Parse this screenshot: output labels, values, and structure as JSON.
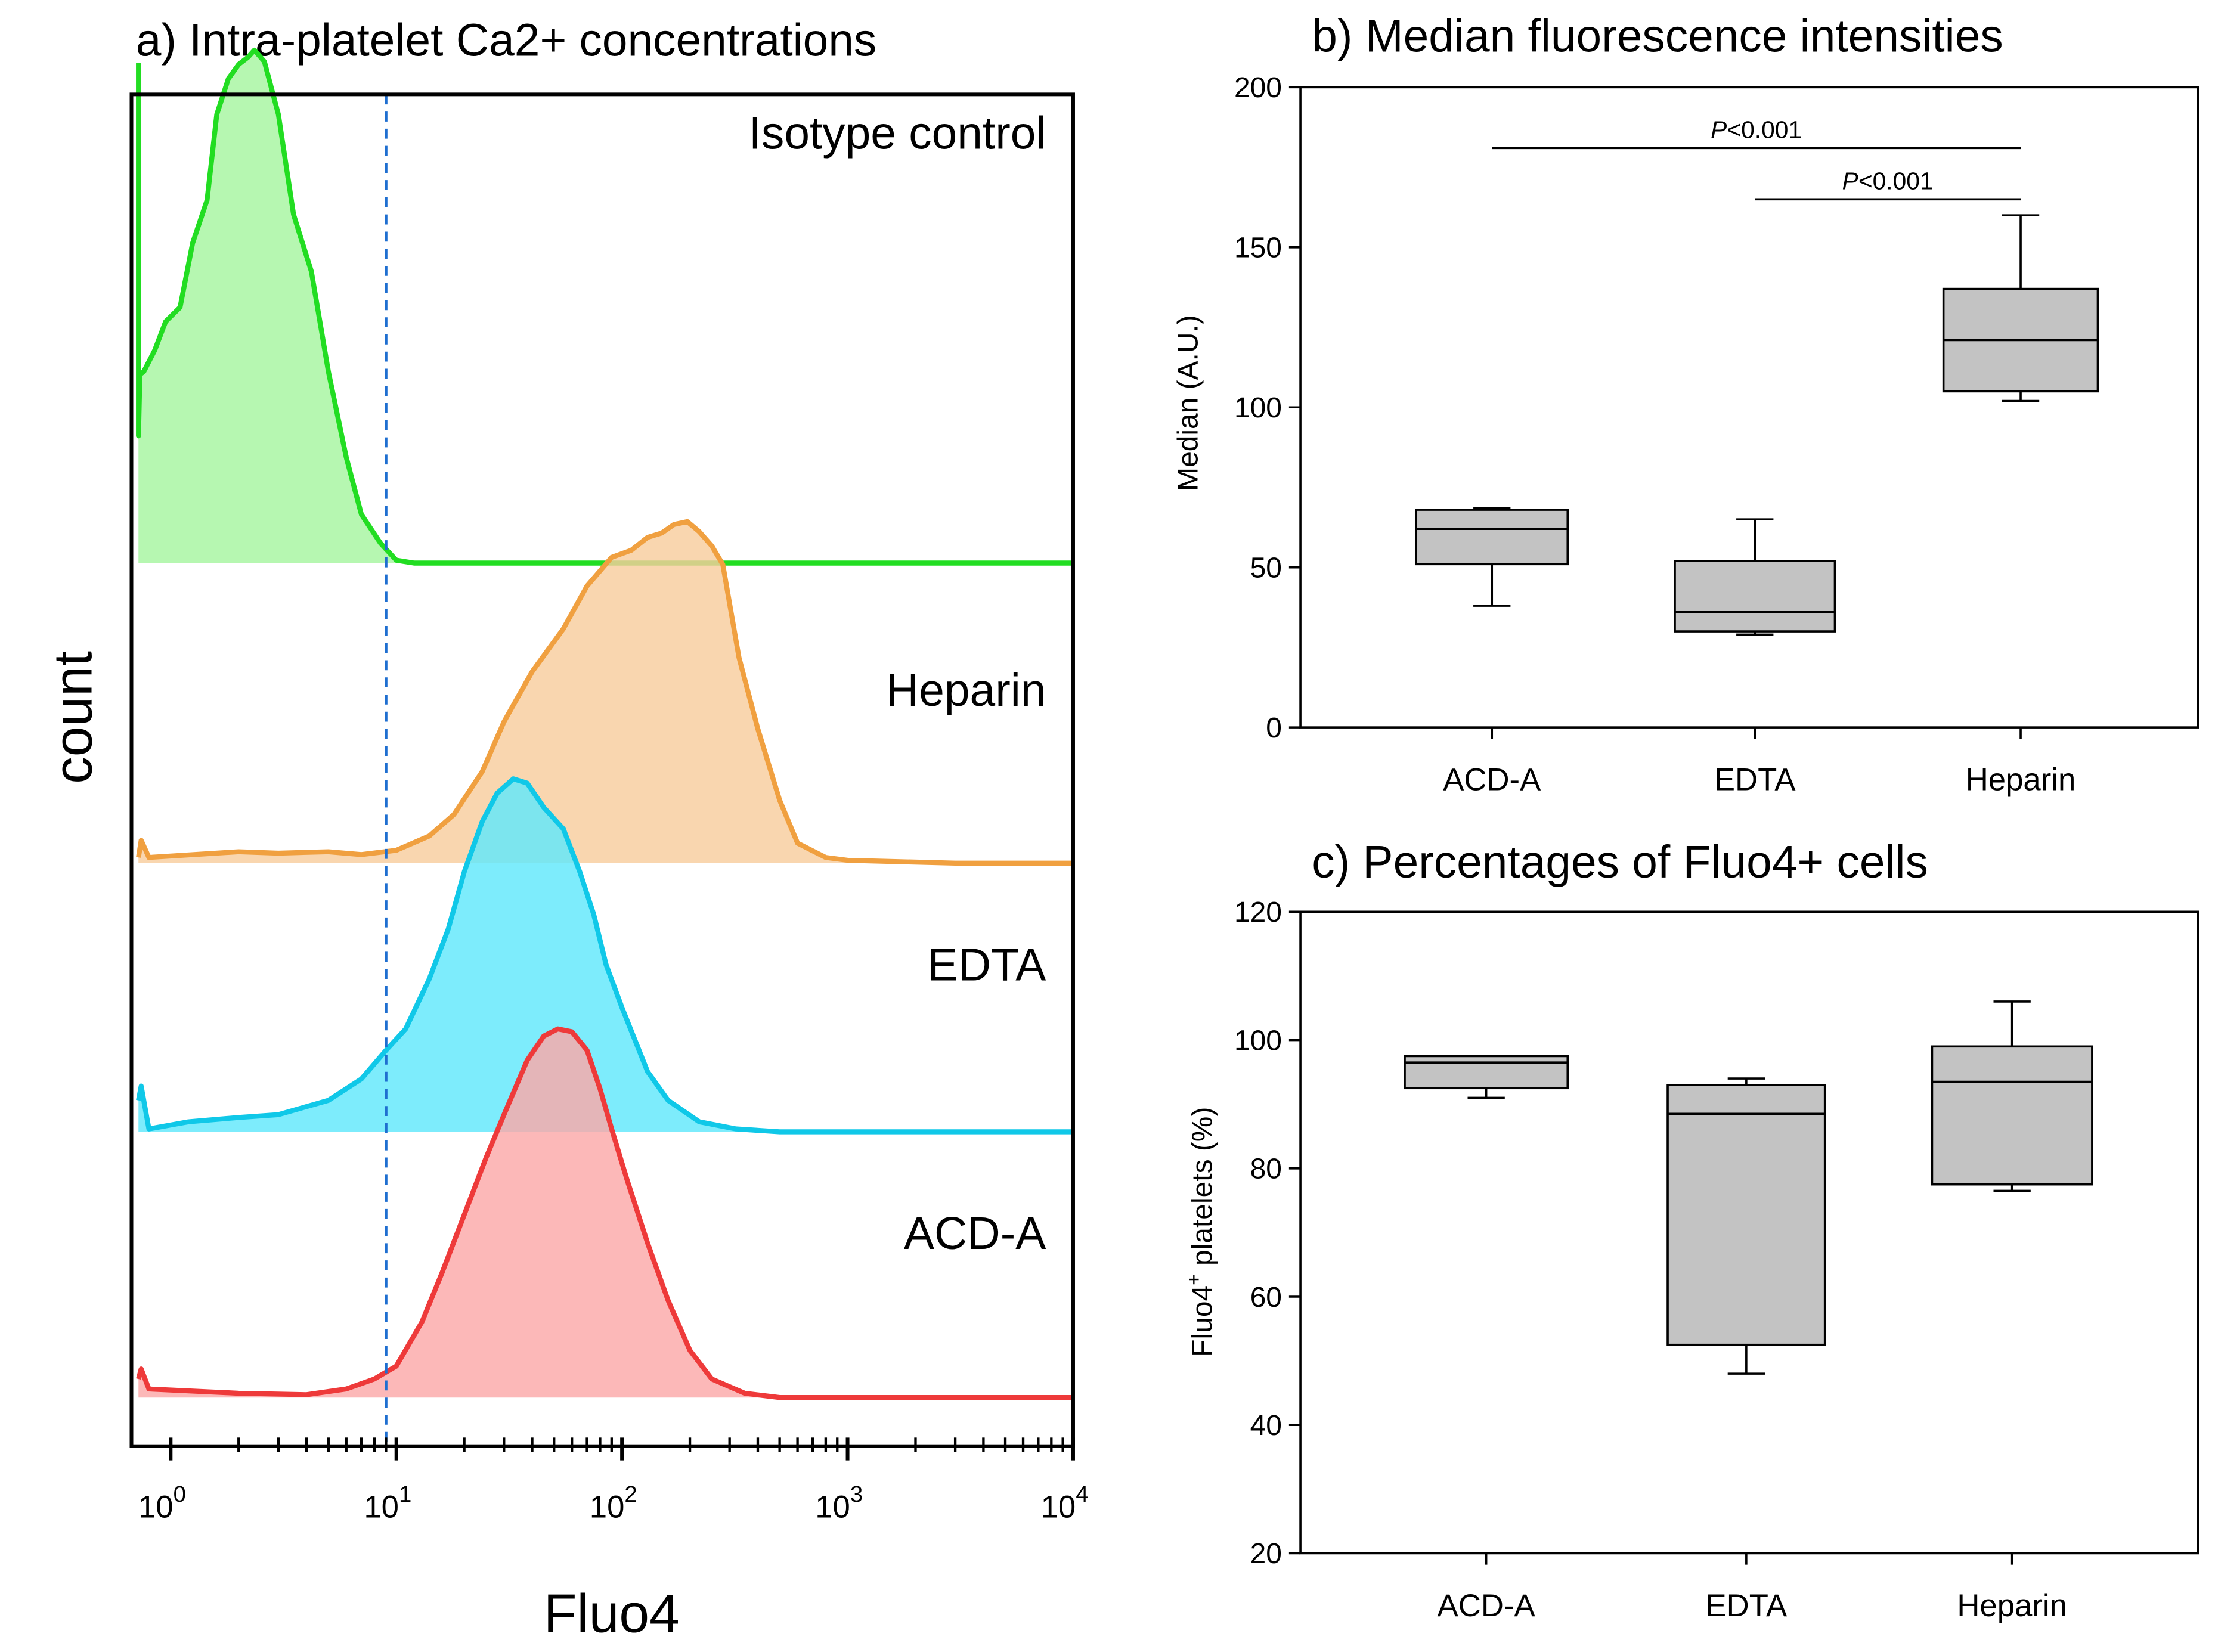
{
  "figure": {
    "panel_a": {
      "title": "a) Intra-platelet Ca2+ concentrations",
      "ylabel": "count",
      "xlabel": "Fluo4",
      "x_ticks": [
        {
          "base": "10",
          "exp": "0",
          "value": 1
        },
        {
          "base": "10",
          "exp": "1",
          "value": 10
        },
        {
          "base": "10",
          "exp": "2",
          "value": 100
        },
        {
          "base": "10",
          "exp": "3",
          "value": 1000
        },
        {
          "base": "10",
          "exp": "4",
          "value": 10000
        }
      ],
      "threshold_label": "Fluo4 threshold (dashed line)"
    },
    "panel_b": {
      "title": "b) Median fluorescence intensities",
      "ylabel": "Median (A.U.)",
      "sig1": "P<0.001",
      "sig2": "P<0.001"
    },
    "panel_c": {
      "title": "c) Percentages of Fluo4+ cells",
      "ylabel_main": "Fluo4",
      "ylabel_sup": "+",
      "ylabel_rest": " platelets (%)"
    }
  },
  "chart_data": [
    {
      "type": "histogram-overlay",
      "title": "a) Intra-platelet Ca2+ concentrations",
      "xlabel": "Fluo4",
      "ylabel": "count",
      "x_scale": "log",
      "xlim": [
        0.7,
        10000
      ],
      "threshold_x": 9,
      "series": [
        {
          "name": "Isotype control",
          "color": "#22dd22",
          "fill": "#a6f5a0",
          "points": [
            [
              0.72,
              44
            ],
            [
              0.72,
              305
            ],
            [
              0.73,
              262
            ],
            [
              0.76,
              260
            ],
            [
              0.85,
              245
            ],
            [
              0.95,
              225
            ],
            [
              1.1,
              215
            ],
            [
              1.25,
              170
            ],
            [
              1.45,
              140
            ],
            [
              1.6,
              80
            ],
            [
              1.8,
              55
            ],
            [
              2.0,
              45
            ],
            [
              2.2,
              40
            ],
            [
              2.35,
              35
            ],
            [
              2.6,
              43
            ],
            [
              3.0,
              80
            ],
            [
              3.5,
              150
            ],
            [
              4.2,
              190
            ],
            [
              5.0,
              260
            ],
            [
              6.0,
              320
            ],
            [
              7.0,
              360
            ],
            [
              8.5,
              380
            ],
            [
              10,
              392
            ],
            [
              12,
              394
            ],
            [
              15,
              394
            ],
            [
              30,
              394
            ],
            [
              100,
              394
            ],
            [
              1000,
              394
            ],
            [
              10000,
              394
            ]
          ]
        },
        {
          "name": "Heparin",
          "color": "#f0a040",
          "fill": "#f8cd9d",
          "points": [
            [
              0.72,
              600
            ],
            [
              0.74,
              588
            ],
            [
              0.8,
              600
            ],
            [
              2,
              596
            ],
            [
              3,
              597
            ],
            [
              5,
              596
            ],
            [
              7,
              598
            ],
            [
              10,
              595
            ],
            [
              14,
              585
            ],
            [
              18,
              570
            ],
            [
              24,
              540
            ],
            [
              30,
              505
            ],
            [
              40,
              470
            ],
            [
              55,
              440
            ],
            [
              70,
              410
            ],
            [
              90,
              390
            ],
            [
              110,
              385
            ],
            [
              130,
              376
            ],
            [
              150,
              373
            ],
            [
              170,
              367
            ],
            [
              195,
              365
            ],
            [
              220,
              372
            ],
            [
              250,
              382
            ],
            [
              280,
              395
            ],
            [
              330,
              460
            ],
            [
              400,
              510
            ],
            [
              500,
              560
            ],
            [
              600,
              590
            ],
            [
              800,
              600
            ],
            [
              1000,
              602
            ],
            [
              3000,
              604
            ],
            [
              10000,
              604
            ]
          ]
        },
        {
          "name": "EDTA",
          "color": "#10c8e8",
          "fill": "#60e8fb",
          "points": [
            [
              0.72,
              770
            ],
            [
              0.74,
              760
            ],
            [
              0.8,
              790
            ],
            [
              1.2,
              785
            ],
            [
              2,
              782
            ],
            [
              3,
              780
            ],
            [
              5,
              770
            ],
            [
              7,
              755
            ],
            [
              9,
              735
            ],
            [
              11,
              720
            ],
            [
              14,
              685
            ],
            [
              17,
              650
            ],
            [
              20,
              610
            ],
            [
              24,
              575
            ],
            [
              28,
              555
            ],
            [
              33,
              545
            ],
            [
              38,
              548
            ],
            [
              45,
              565
            ],
            [
              55,
              580
            ],
            [
              65,
              610
            ],
            [
              75,
              640
            ],
            [
              85,
              675
            ],
            [
              100,
              705
            ],
            [
              130,
              750
            ],
            [
              160,
              770
            ],
            [
              220,
              785
            ],
            [
              320,
              790
            ],
            [
              500,
              792
            ],
            [
              10000,
              792
            ]
          ]
        },
        {
          "name": "ACD-A",
          "color": "#ee3a3a",
          "fill": "#fba8a8",
          "points": [
            [
              0.72,
              965
            ],
            [
              0.74,
              958
            ],
            [
              0.8,
              972
            ],
            [
              2,
              975
            ],
            [
              4,
              976
            ],
            [
              6,
              972
            ],
            [
              8,
              965
            ],
            [
              10,
              956
            ],
            [
              13,
              925
            ],
            [
              16,
              890
            ],
            [
              20,
              850
            ],
            [
              25,
              810
            ],
            [
              30,
              780
            ],
            [
              38,
              742
            ],
            [
              45,
              725
            ],
            [
              52,
              720
            ],
            [
              60,
              722
            ],
            [
              70,
              735
            ],
            [
              80,
              762
            ],
            [
              90,
              790
            ],
            [
              105,
              825
            ],
            [
              130,
              870
            ],
            [
              160,
              910
            ],
            [
              200,
              945
            ],
            [
              250,
              965
            ],
            [
              350,
              975
            ],
            [
              500,
              978
            ],
            [
              1000,
              978
            ],
            [
              10000,
              978
            ]
          ]
        }
      ]
    },
    {
      "type": "box",
      "title": "b) Median fluorescence intensities",
      "ylabel": "Median (A.U.)",
      "ylim": [
        0,
        200
      ],
      "yticks": [
        0,
        50,
        100,
        150,
        200
      ],
      "categories": [
        "ACD-A",
        "EDTA",
        "Heparin"
      ],
      "boxes": [
        {
          "min": 38,
          "q1": 51,
          "median": 62,
          "q3": 68,
          "max": 68.5
        },
        {
          "min": 29,
          "q1": 30,
          "median": 36,
          "q3": 52,
          "max": 65
        },
        {
          "min": 102,
          "q1": 105,
          "median": 121,
          "q3": 137,
          "max": 160
        }
      ],
      "significance": [
        {
          "from": "ACD-A",
          "to": "Heparin",
          "label": "P<0.001",
          "y": 181
        },
        {
          "from": "EDTA",
          "to": "Heparin",
          "label": "P<0.001",
          "y": 165
        }
      ]
    },
    {
      "type": "box",
      "title": "c) Percentages of Fluo4+ cells",
      "ylabel": "Fluo4+ platelets (%)",
      "ylim": [
        20,
        120
      ],
      "yticks": [
        20,
        40,
        60,
        80,
        100,
        120
      ],
      "categories": [
        "ACD-A",
        "EDTA",
        "Heparin"
      ],
      "boxes": [
        {
          "min": 91,
          "q1": 92.5,
          "median": 96.5,
          "q3": 97.5,
          "max": 97.5
        },
        {
          "min": 48,
          "q1": 52.5,
          "median": 88.5,
          "q3": 93,
          "max": 94
        },
        {
          "min": 76.5,
          "q1": 77.5,
          "median": 93.5,
          "q3": 99,
          "max": 106
        }
      ]
    }
  ]
}
